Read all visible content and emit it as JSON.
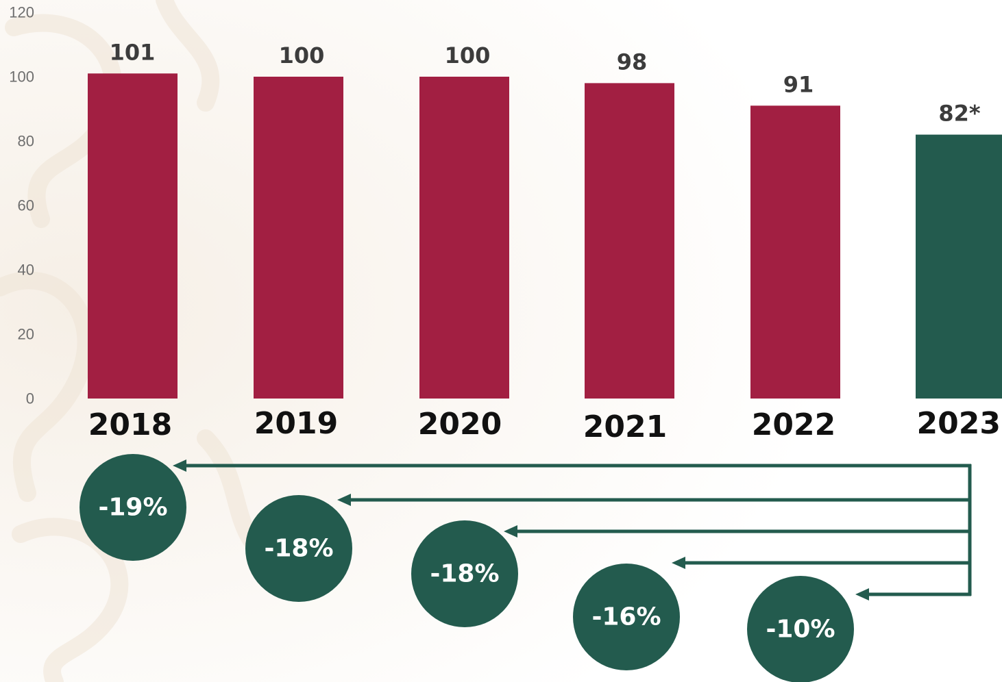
{
  "chart_data": {
    "type": "bar",
    "categories": [
      "2018",
      "2019",
      "2020",
      "2021",
      "2022",
      "2023"
    ],
    "values": [
      101,
      100,
      100,
      98,
      91,
      82
    ],
    "value_labels": [
      "101",
      "100",
      "100",
      "98",
      "91",
      "82*"
    ],
    "y_ticks": [
      "0",
      "20",
      "40",
      "60",
      "80",
      "100",
      "120"
    ],
    "ylim": [
      0,
      120
    ],
    "grid": false,
    "highlight_category": "2023",
    "changes_vs_2023": [
      {
        "from": "2018",
        "label": "-19%"
      },
      {
        "from": "2019",
        "label": "-18%"
      },
      {
        "from": "2020",
        "label": "-18%"
      },
      {
        "from": "2021",
        "label": "-16%"
      },
      {
        "from": "2022",
        "label": "-10%"
      }
    ],
    "colors": {
      "bar": "#a21f42",
      "highlight": "#235b4e",
      "arrow": "#235b4e",
      "badge": "#235b4e"
    }
  }
}
